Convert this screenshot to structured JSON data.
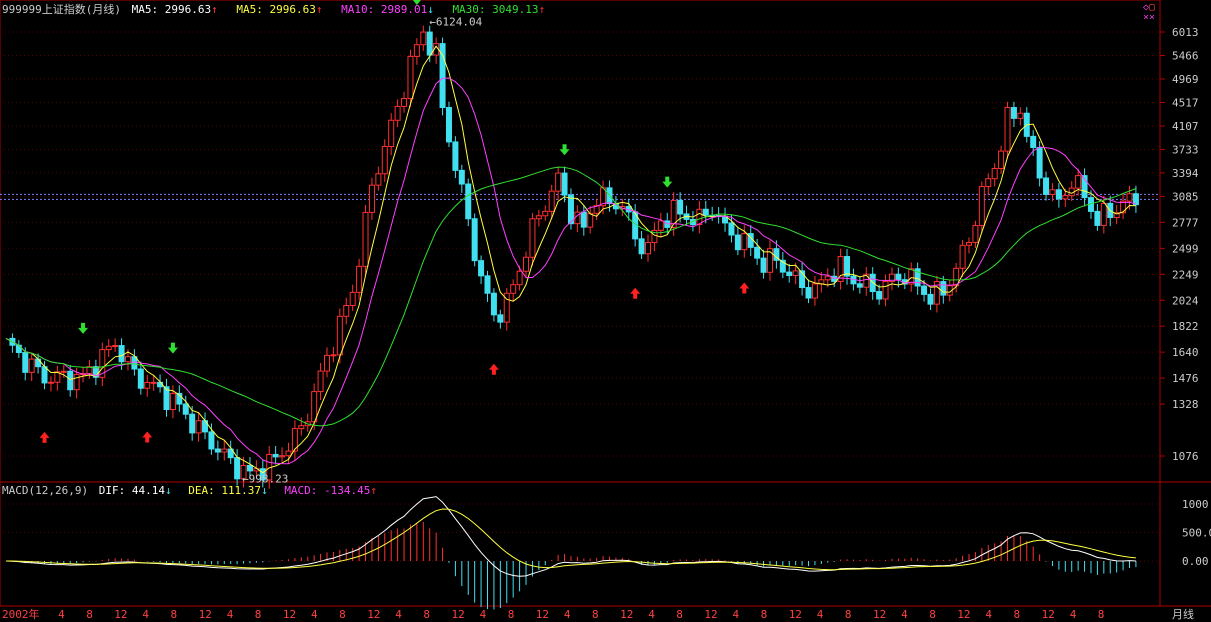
{
  "header": {
    "symbol": "999999",
    "name": "上证指数(月线)",
    "ma5_a": "MA5: 2996.63",
    "ma5_b": "MA5: 2996.63",
    "ma10": "MA10: 2989.01",
    "ma30": "MA30: 3049.13"
  },
  "macd_header": {
    "name": "MACD(12,26,9)",
    "dif": "DIF: 44.14",
    "dea": "DEA: 111.37",
    "macd": "MACD: -134.45"
  },
  "period_label": "月线",
  "colors": {
    "up": "#ff3030",
    "down": "#40e0f0",
    "ma5": "#ffff40",
    "ma10": "#ff40ff",
    "ma30": "#30e030",
    "axis": "#b00000",
    "grid": "#500000",
    "price_line": "#8080ff",
    "dif": "#ffffff",
    "dea": "#ffff40",
    "text": "#cccccc"
  },
  "chart_data": {
    "type": "candlestick",
    "y_scale": "log",
    "price_ticks": [
      6013,
      5466,
      4969,
      4517,
      4107,
      3733,
      3394,
      3085,
      2777,
      2499,
      2249,
      2024,
      1822,
      1640,
      1476,
      1328,
      1076
    ],
    "macd_ticks": [
      1000,
      500,
      0
    ],
    "macd_tick_labels": [
      "1000",
      "500.0",
      "0.00"
    ],
    "x_tick_labels": [
      "2002年",
      "4",
      "8",
      "12",
      "4",
      "8",
      "12",
      "4",
      "8",
      "12",
      "4",
      "8",
      "12",
      "4",
      "8",
      "12",
      "4",
      "8",
      "12",
      "4",
      "8",
      "12",
      "4",
      "8",
      "12",
      "4",
      "8",
      "12",
      "4",
      "8",
      "12",
      "4",
      "8",
      "12",
      "4",
      "8",
      "12",
      "4",
      "8"
    ],
    "annotations": [
      {
        "text": "6124.04",
        "type": "high"
      },
      {
        "text": "998.23",
        "type": "low"
      }
    ],
    "key_prices": [
      [
        0,
        1700
      ],
      [
        6,
        1480
      ],
      [
        12,
        1480
      ],
      [
        17,
        1700
      ],
      [
        20,
        1500
      ],
      [
        26,
        1350
      ],
      [
        30,
        1200
      ],
      [
        35,
        1050
      ],
      [
        38,
        998
      ],
      [
        42,
        1060
      ],
      [
        46,
        1200
      ],
      [
        50,
        1600
      ],
      [
        54,
        2100
      ],
      [
        57,
        3200
      ],
      [
        59,
        3800
      ],
      [
        61,
        4400
      ],
      [
        63,
        5300
      ],
      [
        65,
        6000
      ],
      [
        67,
        5500
      ],
      [
        68,
        4400
      ],
      [
        70,
        3500
      ],
      [
        72,
        2800
      ],
      [
        74,
        2200
      ],
      [
        76,
        1900
      ],
      [
        78,
        2000
      ],
      [
        80,
        2300
      ],
      [
        82,
        2700
      ],
      [
        84,
        3000
      ],
      [
        86,
        3300
      ],
      [
        88,
        2900
      ],
      [
        90,
        2700
      ],
      [
        92,
        3100
      ],
      [
        94,
        3000
      ],
      [
        96,
        3000
      ],
      [
        98,
        2600
      ],
      [
        100,
        2500
      ],
      [
        102,
        2800
      ],
      [
        104,
        2900
      ],
      [
        106,
        2850
      ],
      [
        108,
        2800
      ],
      [
        110,
        2950
      ],
      [
        112,
        2700
      ],
      [
        114,
        2600
      ],
      [
        116,
        2500
      ],
      [
        118,
        2350
      ],
      [
        120,
        2400
      ],
      [
        122,
        2250
      ],
      [
        124,
        2150
      ],
      [
        126,
        2100
      ],
      [
        128,
        2250
      ],
      [
        130,
        2300
      ],
      [
        132,
        2200
      ],
      [
        134,
        2150
      ],
      [
        136,
        2100
      ],
      [
        138,
        2200
      ],
      [
        140,
        2250
      ],
      [
        142,
        2150
      ],
      [
        144,
        2050
      ],
      [
        146,
        2100
      ],
      [
        148,
        2300
      ],
      [
        150,
        2600
      ],
      [
        152,
        3100
      ],
      [
        154,
        3500
      ],
      [
        156,
        4200
      ],
      [
        158,
        4400
      ],
      [
        160,
        3600
      ],
      [
        162,
        3200
      ],
      [
        164,
        3000
      ],
      [
        166,
        3300
      ],
      [
        168,
        3100
      ],
      [
        170,
        2800
      ],
      [
        172,
        2900
      ],
      [
        174,
        3000
      ],
      [
        176,
        3050
      ]
    ],
    "signals": [
      {
        "i": 12,
        "dir": "down"
      },
      {
        "i": 26,
        "dir": "down"
      },
      {
        "i": 64,
        "dir": "down"
      },
      {
        "i": 87,
        "dir": "down"
      },
      {
        "i": 103,
        "dir": "down"
      },
      {
        "i": 6,
        "dir": "up"
      },
      {
        "i": 22,
        "dir": "up"
      },
      {
        "i": 76,
        "dir": "up"
      },
      {
        "i": 98,
        "dir": "up"
      },
      {
        "i": 115,
        "dir": "up"
      }
    ]
  }
}
